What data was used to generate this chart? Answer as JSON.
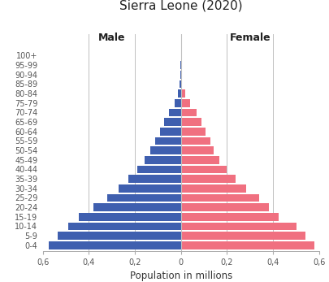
{
  "title": "Sierra Leone (2020)",
  "xlabel": "Population in millions",
  "male_label": "Male",
  "female_label": "Female",
  "age_groups": [
    "0-4",
    "5-9",
    "10-14",
    "15-19",
    "20-24",
    "25-29",
    "30-34",
    "35-39",
    "40-44",
    "45-49",
    "50-54",
    "55-59",
    "60-64",
    "65-69",
    "70-74",
    "75-79",
    "80-84",
    "85-89",
    "90-94",
    "95-99",
    "100+"
  ],
  "male_values": [
    0.575,
    0.535,
    0.49,
    0.445,
    0.38,
    0.32,
    0.27,
    0.23,
    0.188,
    0.158,
    0.132,
    0.112,
    0.092,
    0.072,
    0.052,
    0.028,
    0.014,
    0.005,
    0.002,
    0.001,
    0.0003
  ],
  "female_values": [
    0.578,
    0.542,
    0.5,
    0.425,
    0.382,
    0.338,
    0.282,
    0.238,
    0.198,
    0.168,
    0.142,
    0.128,
    0.108,
    0.088,
    0.068,
    0.038,
    0.018,
    0.006,
    0.002,
    0.001,
    0.0003
  ],
  "male_color": "#3f5faf",
  "female_color": "#f07080",
  "xlim": 0.6,
  "vline_color": "#c0c0c0",
  "center_line_color": "#c0c0c0",
  "background_color": "#ffffff",
  "title_fontsize": 11,
  "label_fontsize": 8.5,
  "tick_fontsize": 7,
  "gender_label_fontsize": 9,
  "tick_positions": [
    -0.6,
    -0.4,
    -0.2,
    0,
    0.2,
    0.4,
    0.6
  ],
  "tick_labels": [
    "0,6",
    "0,4",
    "0,2",
    "0",
    "0,2",
    "0,4",
    "0,6"
  ]
}
